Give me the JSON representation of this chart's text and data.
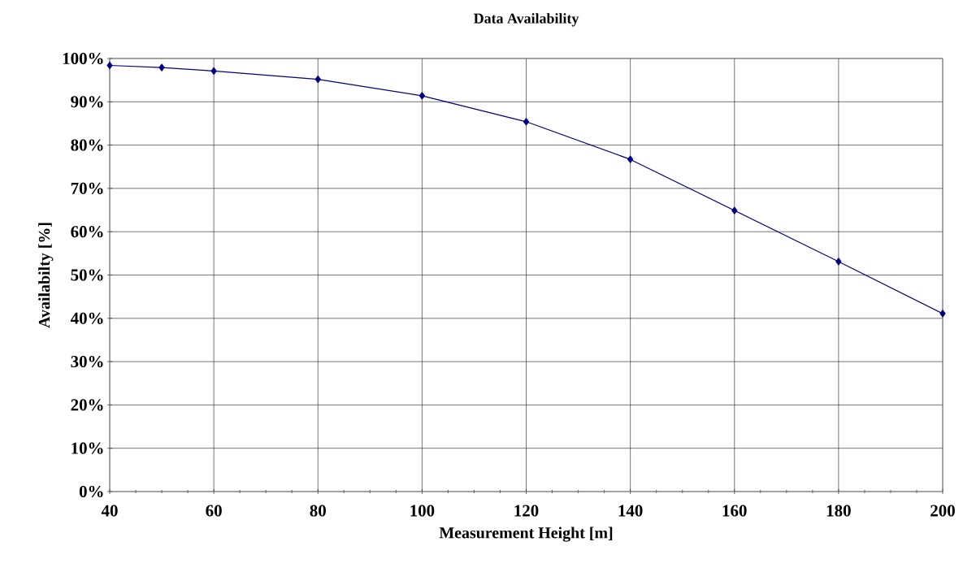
{
  "chart_data": {
    "type": "line",
    "title": "Data Availability",
    "xlabel": "Measurement Height [m]",
    "ylabel": "Availabilty [%]",
    "x": [
      40,
      50,
      60,
      80,
      100,
      120,
      140,
      160,
      180,
      200
    ],
    "series": [
      {
        "color": "#000080",
        "values": [
          98.4,
          97.9,
          97.1,
          95.2,
          91.4,
          85.4,
          76.7,
          64.9,
          53.1,
          41.1
        ]
      }
    ],
    "xlim": [
      40,
      200
    ],
    "xticks": [
      40,
      {
        "value": 45,
        "label": null
      },
      {
        "value": 50,
        "label": null
      },
      {
        "value": 55,
        "label": null
      },
      60,
      {
        "value": 65,
        "label": null
      },
      {
        "value": 70,
        "label": null
      },
      {
        "value": 75,
        "label": null
      },
      80,
      {
        "value": 85,
        "label": null
      },
      {
        "value": 90,
        "label": null
      },
      {
        "value": 95,
        "label": null
      },
      100,
      {
        "value": 105,
        "label": null
      },
      {
        "value": 110,
        "label": null
      },
      {
        "value": 115,
        "label": null
      },
      120,
      {
        "value": 125,
        "label": null
      },
      {
        "value": 130,
        "label": null
      },
      {
        "value": 135,
        "label": null
      },
      140,
      {
        "value": 145,
        "label": null
      },
      {
        "value": 150,
        "label": null
      },
      {
        "value": 155,
        "label": null
      },
      160,
      {
        "value": 165,
        "label": null
      },
      {
        "value": 170,
        "label": null
      },
      {
        "value": 175,
        "label": null
      },
      180,
      {
        "value": 185,
        "label": null
      },
      {
        "value": 190,
        "label": null
      },
      {
        "value": 195,
        "label": null
      },
      200
    ],
    "ylim": [
      0,
      100
    ],
    "yticks": [
      {
        "value": 0,
        "label": "0%"
      },
      {
        "value": 10,
        "label": "10%"
      },
      {
        "value": 20,
        "label": "20%"
      },
      {
        "value": 30,
        "label": "30%"
      },
      {
        "value": 40,
        "label": "40%"
      },
      {
        "value": 50,
        "label": "50%"
      },
      {
        "value": 60,
        "label": "60%"
      },
      {
        "value": 70,
        "label": "70%"
      },
      {
        "value": 80,
        "label": "80%"
      },
      {
        "value": 90,
        "label": "90%"
      },
      {
        "value": 100,
        "label": "100%"
      }
    ],
    "grid": true,
    "marker": "diamond",
    "line_style": "solid"
  }
}
